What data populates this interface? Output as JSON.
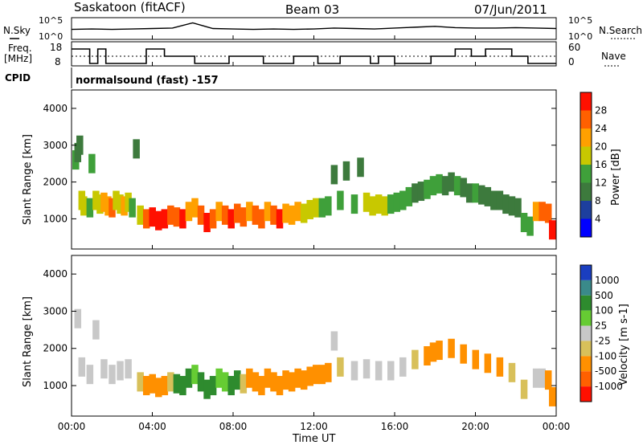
{
  "header": {
    "radar": "Saskatoon (fitACF)",
    "beam": "Beam 03",
    "date": "07/Jun/2011"
  },
  "sky_panel": {
    "left_label": "N.Sky",
    "right_label": "N.Search",
    "left_ticks": [
      "10^5",
      "10^0"
    ],
    "right_ticks": [
      "10^5",
      "10^0"
    ]
  },
  "freq_panel": {
    "left_label_line1": "Freq.",
    "left_label_line2": "[MHz]",
    "right_label": "Nave",
    "left_ticks": [
      "18",
      "8"
    ],
    "right_ticks": [
      "60",
      "0"
    ]
  },
  "cpid": {
    "label": "CPID",
    "program": "normalsound (fast) -157"
  },
  "x_axis": {
    "label": "Time UT",
    "ticks": [
      "00:00",
      "04:00",
      "08:00",
      "12:00",
      "16:00",
      "20:00",
      "00:00"
    ]
  },
  "power_panel": {
    "ylabel": "Slant Range [km]",
    "yticks": [
      "1000",
      "2000",
      "3000",
      "4000"
    ],
    "colorbar_label": "Power [dB]",
    "colorbar_ticks": [
      "4",
      "8",
      "12",
      "16",
      "20",
      "24",
      "28"
    ],
    "colorbar_colors": [
      "#0000ff",
      "#1d3f9e",
      "#3d7a3d",
      "#3fa03a",
      "#c8c800",
      "#ffa000",
      "#ff6000",
      "#ff1000"
    ]
  },
  "velocity_panel": {
    "ylabel": "Slant Range [km]",
    "yticks": [
      "1000",
      "2000",
      "3000",
      "4000"
    ],
    "colorbar_label": "Velocity [m s-1]",
    "colorbar_ticks": [
      "1000",
      "500",
      "100",
      "25",
      "-25",
      "-100",
      "-500",
      "-1000"
    ],
    "colorbar_colors": [
      "#1a3ec0",
      "#3a8a8a",
      "#2e8b2e",
      "#66cc33",
      "#c8c8c8",
      "#d8c05a",
      "#ff9000",
      "#ff6000",
      "#ff1000"
    ]
  },
  "chart_data": [
    {
      "type": "line",
      "title": "N.Sky / N.Search",
      "x": [
        0,
        1,
        2,
        3,
        4,
        5,
        6,
        7,
        8,
        9,
        10,
        11,
        12,
        13,
        14,
        15,
        16,
        17,
        18,
        19,
        20,
        21,
        22,
        23,
        24
      ],
      "series": [
        {
          "name": "N.Sky",
          "values": [
            2.3,
            2.4,
            2.3,
            2.4,
            2.5,
            2.6,
            3.8,
            2.5,
            2.4,
            2.3,
            2.4,
            2.3,
            2.4,
            2.6,
            2.5,
            2.4,
            2.6,
            2.8,
            3.0,
            2.7,
            2.6,
            2.6,
            2.7,
            2.6,
            2.5
          ]
        }
      ],
      "ylim": [
        0,
        5
      ]
    },
    {
      "type": "line",
      "title": "Freq. / Nave",
      "x": [
        0,
        0.6,
        0.9,
        1.3,
        1.7,
        2.2,
        2.8,
        3.4,
        3.7,
        4.0,
        4.6,
        5.2,
        5.6,
        6.1,
        6.7,
        7.3,
        7.8,
        8.4,
        9.0,
        9.5,
        10.3,
        11.0,
        11.5,
        12.2,
        12.8,
        13.3,
        14.0,
        14.8,
        15.2,
        16.0,
        16.8,
        17.3,
        17.8,
        18.4,
        19.0,
        19.8,
        20.5,
        21.0,
        21.8,
        22.6,
        23.2,
        24
      ],
      "series": [
        {
          "name": "Freq. [MHz]",
          "values": [
            16,
            16,
            10,
            16,
            10,
            10,
            10,
            10,
            16,
            16,
            13,
            13,
            13,
            10,
            10,
            10,
            13,
            13,
            13,
            10,
            10,
            13,
            13,
            10,
            10,
            13,
            13,
            10,
            13,
            10,
            10,
            10,
            13,
            13,
            16,
            13,
            16,
            16,
            13,
            10,
            10,
            10
          ]
        }
      ],
      "ylim": [
        8,
        18
      ]
    },
    {
      "type": "heatmap",
      "title": "Power [dB]",
      "xlabel": "Time UT",
      "ylabel": "Slant Range [km]",
      "xlim": [
        0,
        24
      ],
      "ylim": [
        180,
        4500
      ],
      "zlim": [
        0,
        30
      ],
      "cells": [
        [
          0.2,
          2600,
          14
        ],
        [
          0.3,
          2800,
          10
        ],
        [
          0.4,
          3000,
          8
        ],
        [
          0.5,
          1500,
          18
        ],
        [
          0.6,
          1350,
          16
        ],
        [
          0.9,
          1300,
          12
        ],
        [
          1.0,
          2500,
          12
        ],
        [
          1.2,
          1500,
          16
        ],
        [
          1.4,
          1400,
          18
        ],
        [
          1.6,
          1450,
          20
        ],
        [
          1.8,
          1350,
          22
        ],
        [
          2.0,
          1300,
          24
        ],
        [
          2.2,
          1500,
          18
        ],
        [
          2.4,
          1400,
          16
        ],
        [
          2.6,
          1350,
          20
        ],
        [
          2.8,
          1450,
          18
        ],
        [
          3.0,
          1300,
          14
        ],
        [
          3.2,
          2900,
          8
        ],
        [
          3.4,
          1100,
          18
        ],
        [
          3.7,
          1000,
          24
        ],
        [
          4.0,
          1050,
          28
        ],
        [
          4.3,
          950,
          30
        ],
        [
          4.6,
          1000,
          28
        ],
        [
          4.9,
          1100,
          26
        ],
        [
          5.2,
          1050,
          24
        ],
        [
          5.5,
          1000,
          28
        ],
        [
          5.8,
          1200,
          22
        ],
        [
          6.1,
          1300,
          20
        ],
        [
          6.4,
          1100,
          26
        ],
        [
          6.7,
          900,
          28
        ],
        [
          7.0,
          1000,
          24
        ],
        [
          7.3,
          1200,
          22
        ],
        [
          7.6,
          1100,
          26
        ],
        [
          7.9,
          1000,
          28
        ],
        [
          8.2,
          1150,
          24
        ],
        [
          8.5,
          1050,
          26
        ],
        [
          8.8,
          1200,
          22
        ],
        [
          9.1,
          1100,
          24
        ],
        [
          9.4,
          1000,
          26
        ],
        [
          9.7,
          1200,
          22
        ],
        [
          10.0,
          1100,
          24
        ],
        [
          10.3,
          1000,
          28
        ],
        [
          10.6,
          1150,
          22
        ],
        [
          10.9,
          1100,
          20
        ],
        [
          11.2,
          1200,
          20
        ],
        [
          11.5,
          1150,
          18
        ],
        [
          11.8,
          1250,
          18
        ],
        [
          12.1,
          1300,
          16
        ],
        [
          12.4,
          1300,
          14
        ],
        [
          12.7,
          1350,
          14
        ],
        [
          13.0,
          2200,
          10
        ],
        [
          13.3,
          1500,
          12
        ],
        [
          13.6,
          2300,
          8
        ],
        [
          14.0,
          1400,
          14
        ],
        [
          14.3,
          2400,
          8
        ],
        [
          14.6,
          1450,
          16
        ],
        [
          14.9,
          1350,
          18
        ],
        [
          15.2,
          1400,
          16
        ],
        [
          15.5,
          1350,
          18
        ],
        [
          15.8,
          1400,
          14
        ],
        [
          16.1,
          1450,
          14
        ],
        [
          16.4,
          1500,
          12
        ],
        [
          16.7,
          1600,
          12
        ],
        [
          17.0,
          1700,
          10
        ],
        [
          17.3,
          1750,
          10
        ],
        [
          17.6,
          1800,
          12
        ],
        [
          17.9,
          1900,
          14
        ],
        [
          18.2,
          1950,
          12
        ],
        [
          18.5,
          1900,
          10
        ],
        [
          18.8,
          2000,
          10
        ],
        [
          19.1,
          1900,
          12
        ],
        [
          19.4,
          1850,
          10
        ],
        [
          19.7,
          1700,
          10
        ],
        [
          20.0,
          1700,
          12
        ],
        [
          20.3,
          1650,
          10
        ],
        [
          20.6,
          1600,
          10
        ],
        [
          20.9,
          1500,
          10
        ],
        [
          21.2,
          1500,
          10
        ],
        [
          21.5,
          1400,
          8
        ],
        [
          21.8,
          1350,
          8
        ],
        [
          22.1,
          1300,
          10
        ],
        [
          22.4,
          900,
          12
        ],
        [
          22.7,
          800,
          14
        ],
        [
          23.0,
          1200,
          22
        ],
        [
          23.3,
          1200,
          24
        ],
        [
          23.6,
          1150,
          26
        ],
        [
          23.8,
          700,
          28
        ]
      ]
    },
    {
      "type": "heatmap",
      "title": "Velocity [m s-1]",
      "xlabel": "Time UT",
      "ylabel": "Slant Range [km]",
      "xlim": [
        0,
        24
      ],
      "ylim": [
        180,
        4500
      ],
      "zlim": [
        -1000,
        1000
      ],
      "cells": [
        [
          0.3,
          2800,
          0
        ],
        [
          0.5,
          1500,
          0
        ],
        [
          0.9,
          1300,
          0
        ],
        [
          1.2,
          2500,
          0
        ],
        [
          1.6,
          1450,
          0
        ],
        [
          2.0,
          1300,
          0
        ],
        [
          2.4,
          1400,
          0
        ],
        [
          2.8,
          1450,
          0
        ],
        [
          3.4,
          1100,
          -100
        ],
        [
          3.7,
          1000,
          -200
        ],
        [
          4.0,
          1050,
          -200
        ],
        [
          4.3,
          950,
          -150
        ],
        [
          4.6,
          1000,
          -200
        ],
        [
          4.9,
          1100,
          -100
        ],
        [
          5.2,
          1050,
          100
        ],
        [
          5.5,
          1000,
          150
        ],
        [
          5.8,
          1200,
          100
        ],
        [
          6.1,
          1300,
          80
        ],
        [
          6.4,
          1100,
          120
        ],
        [
          6.7,
          900,
          150
        ],
        [
          7.0,
          1000,
          100
        ],
        [
          7.3,
          1200,
          80
        ],
        [
          7.6,
          1100,
          50
        ],
        [
          7.9,
          1000,
          100
        ],
        [
          8.2,
          1150,
          120
        ],
        [
          8.5,
          1050,
          -100
        ],
        [
          8.8,
          1200,
          -200
        ],
        [
          9.1,
          1100,
          -200
        ],
        [
          9.4,
          1000,
          -250
        ],
        [
          9.7,
          1200,
          -200
        ],
        [
          10.0,
          1100,
          -200
        ],
        [
          10.3,
          1000,
          -250
        ],
        [
          10.6,
          1150,
          -200
        ],
        [
          10.9,
          1100,
          -200
        ],
        [
          11.2,
          1200,
          -200
        ],
        [
          11.5,
          1150,
          -250
        ],
        [
          11.8,
          1250,
          -250
        ],
        [
          12.1,
          1300,
          -250
        ],
        [
          12.4,
          1300,
          -200
        ],
        [
          12.7,
          1350,
          -200
        ],
        [
          13.0,
          2200,
          0
        ],
        [
          13.3,
          1500,
          -100
        ],
        [
          14.0,
          1400,
          0
        ],
        [
          14.6,
          1450,
          0
        ],
        [
          15.2,
          1400,
          0
        ],
        [
          15.8,
          1400,
          0
        ],
        [
          16.4,
          1500,
          0
        ],
        [
          17.0,
          1700,
          -100
        ],
        [
          17.6,
          1800,
          -150
        ],
        [
          17.9,
          1900,
          -150
        ],
        [
          18.2,
          1950,
          -200
        ],
        [
          18.8,
          2000,
          -200
        ],
        [
          19.4,
          1850,
          -200
        ],
        [
          20.0,
          1700,
          -200
        ],
        [
          20.6,
          1600,
          -200
        ],
        [
          21.2,
          1500,
          -150
        ],
        [
          21.8,
          1350,
          -100
        ],
        [
          22.4,
          900,
          -100
        ],
        [
          23.0,
          1200,
          0
        ],
        [
          23.3,
          1200,
          0
        ],
        [
          23.6,
          1150,
          -200
        ],
        [
          23.8,
          700,
          -300
        ]
      ]
    }
  ]
}
